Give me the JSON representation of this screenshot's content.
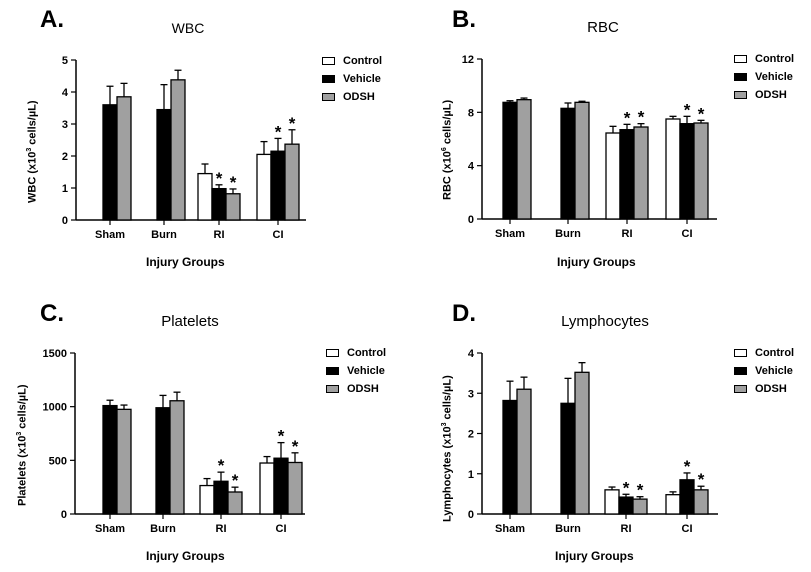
{
  "legend_colors": {
    "Control": "#ffffff",
    "Vehicle": "#000000",
    "ODSH": "#a0a0a0"
  },
  "chart_data": [
    {
      "id": "A",
      "type": "bar",
      "letter": "A.",
      "title": "WBC",
      "xlabel": "Injury Groups",
      "ylabel_pre": "WBC (x10",
      "ylabel_sup": "3",
      "ylabel_post": " cells/µL)",
      "ylim": [
        0,
        5
      ],
      "yticks": [
        0,
        1,
        2,
        3,
        4,
        5
      ],
      "categories": [
        "Sham",
        "Burn",
        "RI",
        "CI"
      ],
      "series": [
        {
          "name": "Control",
          "values": [
            null,
            null,
            1.45,
            2.05
          ],
          "errors": [
            0,
            0,
            0.3,
            0.4
          ],
          "stars": [
            false,
            false,
            false,
            false
          ]
        },
        {
          "name": "Vehicle",
          "values": [
            3.6,
            3.45,
            0.98,
            2.15
          ],
          "errors": [
            0.58,
            0.78,
            0.12,
            0.4
          ],
          "stars": [
            false,
            false,
            true,
            true
          ]
        },
        {
          "name": "ODSH",
          "values": [
            3.85,
            4.38,
            0.82,
            2.37
          ],
          "errors": [
            0.42,
            0.3,
            0.15,
            0.45
          ],
          "stars": [
            false,
            false,
            true,
            true
          ]
        }
      ]
    },
    {
      "id": "B",
      "type": "bar",
      "letter": "B.",
      "title": "RBC",
      "xlabel": "Injury Groups",
      "ylabel_pre": "RBC (x10",
      "ylabel_sup": "6",
      "ylabel_post": " cells/µL)",
      "ylim": [
        0,
        12
      ],
      "yticks": [
        0,
        4,
        8,
        12
      ],
      "categories": [
        "Sham",
        "Burn",
        "RI",
        "CI"
      ],
      "series": [
        {
          "name": "Control",
          "values": [
            null,
            null,
            6.45,
            7.5
          ],
          "errors": [
            0,
            0,
            0.5,
            0.2
          ],
          "stars": [
            false,
            false,
            false,
            false
          ]
        },
        {
          "name": "Vehicle",
          "values": [
            8.75,
            8.3,
            6.7,
            7.15
          ],
          "errors": [
            0.12,
            0.4,
            0.4,
            0.55
          ],
          "stars": [
            false,
            false,
            true,
            true
          ]
        },
        {
          "name": "ODSH",
          "values": [
            8.95,
            8.75,
            6.9,
            7.2
          ],
          "errors": [
            0.12,
            0.08,
            0.25,
            0.2
          ],
          "stars": [
            false,
            false,
            true,
            true
          ]
        }
      ]
    },
    {
      "id": "C",
      "type": "bar",
      "letter": "C.",
      "title": "Platelets",
      "xlabel": "Injury Groups",
      "ylabel_pre": "Platelets (x10",
      "ylabel_sup": "3",
      "ylabel_post": " cells/µL)",
      "ylim": [
        0,
        1500
      ],
      "yticks": [
        0,
        500,
        1000,
        1500
      ],
      "categories": [
        "Sham",
        "Burn",
        "RI",
        "CI"
      ],
      "series": [
        {
          "name": "Control",
          "values": [
            null,
            null,
            265,
            475
          ],
          "errors": [
            0,
            0,
            65,
            60
          ],
          "stars": [
            false,
            false,
            false,
            false
          ]
        },
        {
          "name": "Vehicle",
          "values": [
            1010,
            990,
            305,
            520
          ],
          "errors": [
            50,
            115,
            85,
            145
          ],
          "stars": [
            false,
            false,
            true,
            true
          ]
        },
        {
          "name": "ODSH",
          "values": [
            975,
            1055,
            205,
            480
          ],
          "errors": [
            40,
            80,
            45,
            90
          ],
          "stars": [
            false,
            false,
            true,
            true
          ]
        }
      ]
    },
    {
      "id": "D",
      "type": "bar",
      "letter": "D.",
      "title": "Lymphocytes",
      "xlabel": "Injury Groups",
      "ylabel_pre": "Lymphocytes (x10",
      "ylabel_sup": "3",
      "ylabel_post": " cells/µL)",
      "ylim": [
        0,
        4
      ],
      "yticks": [
        0,
        1,
        2,
        3,
        4
      ],
      "categories": [
        "Sham",
        "Burn",
        "RI",
        "CI"
      ],
      "series": [
        {
          "name": "Control",
          "values": [
            null,
            null,
            0.6,
            0.48
          ],
          "errors": [
            0,
            0,
            0.07,
            0.07
          ],
          "stars": [
            false,
            false,
            false,
            false
          ]
        },
        {
          "name": "Vehicle",
          "values": [
            2.82,
            2.75,
            0.42,
            0.85
          ],
          "errors": [
            0.48,
            0.62,
            0.07,
            0.17
          ],
          "stars": [
            false,
            false,
            true,
            true
          ]
        },
        {
          "name": "ODSH",
          "values": [
            3.1,
            3.52,
            0.37,
            0.6
          ],
          "errors": [
            0.3,
            0.24,
            0.06,
            0.09
          ],
          "stars": [
            false,
            false,
            true,
            true
          ]
        }
      ]
    }
  ]
}
